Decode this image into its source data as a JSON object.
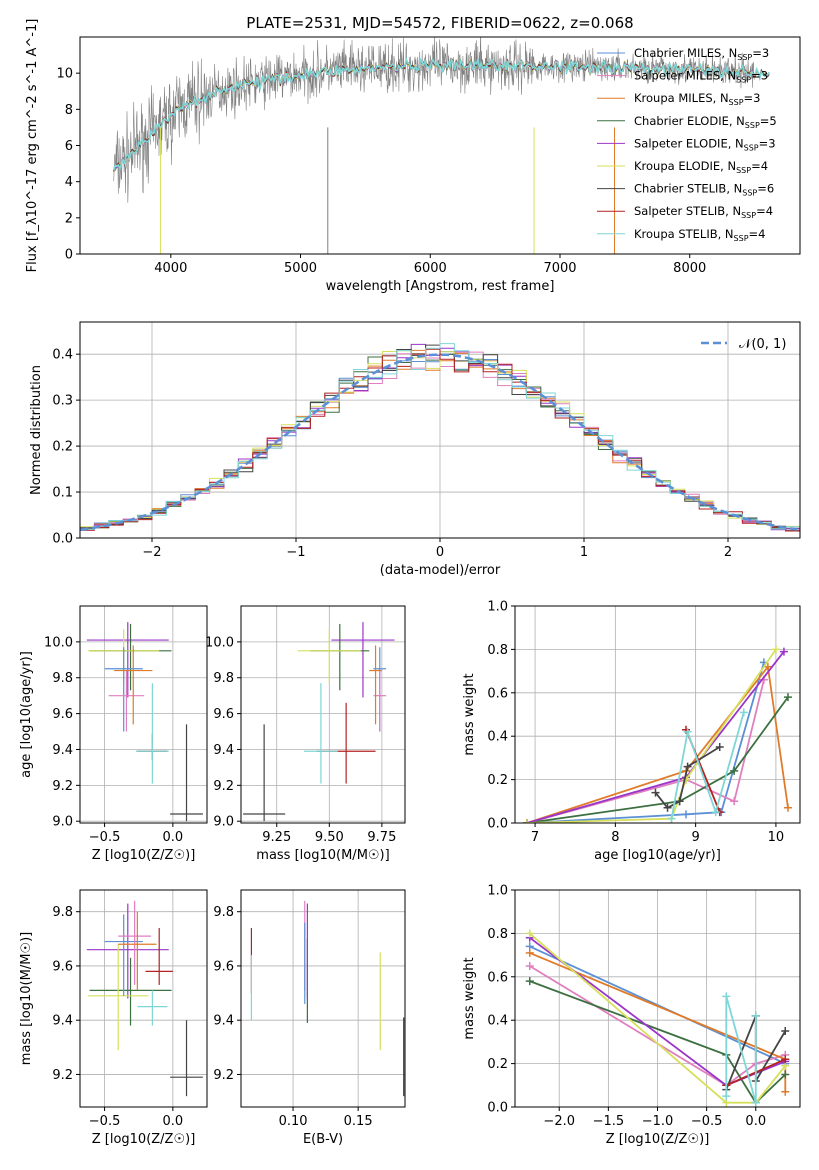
{
  "title": "PLATE=2531, MJD=54572, FIBERID=0622, z=0.068",
  "colors": {
    "chabrier_miles": "#5b8fd6",
    "salpeter_miles": "#e07fbf",
    "kroupa_miles": "#e07b2a",
    "chabrier_elodie": "#3c7040",
    "salpeter_elodie": "#9b35c9",
    "kroupa_elodie": "#d6e05a",
    "chabrier_stelib": "#444444",
    "salpeter_stelib": "#b22222",
    "kroupa_stelib": "#7fd6d6",
    "grid": "#b0b0b0",
    "normal_curve": "#5b8fd6"
  },
  "chart_data": [
    {
      "type": "line",
      "panel": "spectrum",
      "xlabel": "wavelength [Angstrom, rest frame]",
      "ylabel": "Flux [f_λ10^-17 erg cm^-2 s^-1 A^-1]",
      "xlim": [
        3300,
        8850
      ],
      "ylim": [
        0,
        12
      ],
      "xticks": [
        "4000",
        "5000",
        "6000",
        "7000",
        "8000"
      ],
      "yticks": [
        "0",
        "2",
        "4",
        "6",
        "8",
        "10"
      ],
      "legend_position": "right",
      "legend": [
        {
          "name": "Chabrier MILES, N_SSP=3",
          "key": "chabrier_miles"
        },
        {
          "name": "Salpeter MILES, N_SSP=3",
          "key": "salpeter_miles"
        },
        {
          "name": "Kroupa MILES, N_SSP=3",
          "key": "kroupa_miles"
        },
        {
          "name": "Chabrier ELODIE, N_SSP=5",
          "key": "chabrier_elodie"
        },
        {
          "name": "Salpeter ELODIE, N_SSP=3",
          "key": "salpeter_elodie"
        },
        {
          "name": "Kroupa ELODIE, N_SSP=4",
          "key": "kroupa_elodie"
        },
        {
          "name": "Chabrier STELIB, N_SSP=6",
          "key": "chabrier_stelib"
        },
        {
          "name": "Salpeter STELIB, N_SSP=4",
          "key": "salpeter_stelib"
        },
        {
          "name": "Kroupa STELIB, N_SSP=4",
          "key": "kroupa_stelib"
        }
      ],
      "continuum": {
        "x": [
          3550,
          3700,
          3900,
          4100,
          4400,
          4800,
          5200,
          5600,
          6000,
          6500,
          7000,
          7500,
          8000,
          8500
        ],
        "y": [
          4.6,
          5.6,
          7.0,
          8.2,
          9.1,
          9.7,
          10.1,
          10.3,
          10.4,
          10.4,
          10.4,
          10.3,
          10.2,
          10.0
        ]
      }
    },
    {
      "type": "step",
      "panel": "residuals",
      "xlabel": "(data-model)/error",
      "ylabel": "Normed distribution",
      "xlim": [
        -2.5,
        2.5
      ],
      "ylim": [
        0,
        0.47
      ],
      "xticks": [
        "−2",
        "−1",
        "0",
        "1",
        "2"
      ],
      "yticks": [
        "0.0",
        "0.1",
        "0.2",
        "0.3",
        "0.4"
      ],
      "legend": [
        {
          "name": "𝒩(0, 1)"
        }
      ],
      "legend_position": "top-right"
    },
    {
      "type": "scatter",
      "panel": "age_vs_Z",
      "xlabel": "Z [log10(Z/Z☉)]",
      "ylabel": "age  [log10(age/yr)]",
      "xlim": [
        -0.68,
        0.25
      ],
      "ylim": [
        8.99,
        10.2
      ],
      "xticks": [
        "−0.5",
        "0.0"
      ],
      "yticks": [
        "9.0",
        "9.2",
        "9.4",
        "9.6",
        "9.8",
        "10.0"
      ],
      "points": [
        {
          "key": "salpeter_elodie",
          "x": -0.33,
          "y": 10.01,
          "xerr": 0.3,
          "yerr": [
            0.32,
            0.1
          ]
        },
        {
          "key": "chabrier_elodie",
          "x": -0.31,
          "y": 9.95,
          "xerr": 0.3,
          "yerr": [
            0.22,
            0.15
          ]
        },
        {
          "key": "kroupa_elodie",
          "x": -0.36,
          "y": 9.95,
          "xerr": 0.26,
          "yerr": [
            0.18,
            0.12
          ]
        },
        {
          "key": "chabrier_miles",
          "x": -0.36,
          "y": 9.85,
          "xerr": 0.14,
          "yerr": [
            0.35,
            0.12
          ]
        },
        {
          "key": "salpeter_miles",
          "x": -0.34,
          "y": 9.7,
          "xerr": 0.13,
          "yerr": [
            0.2,
            0.14
          ]
        },
        {
          "key": "kroupa_miles",
          "x": -0.29,
          "y": 9.84,
          "xerr": 0.14,
          "yerr": [
            0.3,
            0.14
          ]
        },
        {
          "key": "salpeter_stelib",
          "x": -0.15,
          "y": 9.39,
          "xerr": 0.11,
          "yerr": [
            0.05,
            0.1
          ]
        },
        {
          "key": "kroupa_stelib",
          "x": -0.15,
          "y": 9.39,
          "xerr": 0.12,
          "yerr": [
            0.18,
            0.38
          ]
        },
        {
          "key": "chabrier_stelib",
          "x": 0.1,
          "y": 9.04,
          "xerr": 0.12,
          "yerr": [
            0.04,
            0.5
          ]
        }
      ]
    },
    {
      "type": "scatter",
      "panel": "age_vs_mass",
      "xlabel": "mass [log10(M/M☉)]",
      "ylabel": "",
      "xlim": [
        9.08,
        9.86
      ],
      "ylim": [
        8.99,
        10.2
      ],
      "xticks": [
        "9.25",
        "9.50",
        "9.75"
      ],
      "yticks": [
        "9.0",
        "9.2",
        "9.4",
        "9.6",
        "9.8",
        "10.0"
      ],
      "points": [
        {
          "key": "salpeter_elodie",
          "x": 9.66,
          "y": 10.01,
          "xerr": 0.15,
          "yerr": [
            0.32,
            0.1
          ]
        },
        {
          "key": "chabrier_elodie",
          "x": 9.55,
          "y": 9.95,
          "xerr": 0.14,
          "yerr": [
            0.22,
            0.15
          ]
        },
        {
          "key": "kroupa_elodie",
          "x": 9.5,
          "y": 9.95,
          "xerr": 0.15,
          "yerr": [
            0.18,
            0.12
          ]
        },
        {
          "key": "chabrier_miles",
          "x": 9.74,
          "y": 9.85,
          "xerr": 0.03,
          "yerr": [
            0.35,
            0.12
          ]
        },
        {
          "key": "salpeter_miles",
          "x": 9.74,
          "y": 9.7,
          "xerr": 0.03,
          "yerr": [
            0.2,
            0.14
          ]
        },
        {
          "key": "kroupa_miles",
          "x": 9.72,
          "y": 9.84,
          "xerr": 0.03,
          "yerr": [
            0.3,
            0.14
          ]
        },
        {
          "key": "salpeter_stelib",
          "x": 9.58,
          "y": 9.39,
          "xerr": 0.14,
          "yerr": [
            0.18,
            0.27
          ]
        },
        {
          "key": "kroupa_stelib",
          "x": 9.46,
          "y": 9.39,
          "xerr": 0.08,
          "yerr": [
            0.18,
            0.38
          ]
        },
        {
          "key": "chabrier_stelib",
          "x": 9.19,
          "y": 9.04,
          "xerr": 0.1,
          "yerr": [
            0.04,
            0.5
          ]
        }
      ]
    },
    {
      "type": "line",
      "panel": "weight_vs_age",
      "xlabel": "age  [log10(age/yr)]",
      "ylabel": "mass weight",
      "xlim": [
        6.75,
        10.3
      ],
      "ylim": [
        0,
        1
      ],
      "xticks": [
        "7",
        "8",
        "9",
        "10"
      ],
      "yticks": [
        "0.0",
        "0.2",
        "0.4",
        "0.6",
        "0.8",
        "1.0"
      ],
      "series": [
        {
          "key": "chabrier_miles",
          "x": [
            6.9,
            8.88,
            9.32,
            9.85
          ],
          "y": [
            0.0,
            0.04,
            0.05,
            0.74
          ]
        },
        {
          "key": "salpeter_miles",
          "x": [
            6.9,
            8.88,
            9.48,
            9.85
          ],
          "y": [
            0.0,
            0.2,
            0.1,
            0.66
          ]
        },
        {
          "key": "kroupa_miles",
          "x": [
            6.9,
            8.88,
            9.9,
            10.15
          ],
          "y": [
            0.0,
            0.24,
            0.72,
            0.07
          ]
        },
        {
          "key": "chabrier_elodie",
          "x": [
            6.9,
            8.8,
            9.48,
            10.15
          ],
          "y": [
            0.0,
            0.1,
            0.24,
            0.58
          ]
        },
        {
          "key": "salpeter_elodie",
          "x": [
            6.9,
            8.88,
            10.1
          ],
          "y": [
            0.0,
            0.21,
            0.79
          ]
        },
        {
          "key": "kroupa_elodie",
          "x": [
            6.9,
            8.7,
            8.88,
            10.0
          ],
          "y": [
            0.0,
            0.02,
            0.2,
            0.8
          ]
        },
        {
          "key": "chabrier_stelib",
          "x": [
            8.5,
            8.65,
            8.8,
            8.9,
            9.3
          ],
          "y": [
            0.14,
            0.07,
            0.1,
            0.26,
            0.35
          ]
        },
        {
          "key": "salpeter_stelib",
          "x": [
            8.88,
            9.3
          ],
          "y": [
            0.43,
            0.05
          ]
        },
        {
          "key": "kroupa_stelib",
          "x": [
            8.7,
            8.9,
            9.25,
            9.6
          ],
          "y": [
            0.02,
            0.42,
            0.05,
            0.51
          ]
        }
      ]
    },
    {
      "type": "scatter",
      "panel": "mass_vs_Z",
      "xlabel": "Z [log10(Z/Z☉)]",
      "ylabel": "mass [log10(M/M☉)]",
      "xlim": [
        -0.68,
        0.25
      ],
      "ylim": [
        9.08,
        9.88
      ],
      "xticks": [
        "−0.5",
        "0.0"
      ],
      "yticks": [
        "9.2",
        "9.4",
        "9.6",
        "9.8"
      ],
      "points": [
        {
          "key": "salpeter_elodie",
          "x": -0.33,
          "y": 9.66,
          "xerr": 0.3,
          "yerr": [
            0.18,
            0.17
          ]
        },
        {
          "key": "chabrier_elodie",
          "x": -0.31,
          "y": 9.51,
          "xerr": 0.3,
          "yerr": [
            0.13,
            0.12
          ]
        },
        {
          "key": "kroupa_elodie",
          "x": -0.4,
          "y": 9.49,
          "xerr": 0.22,
          "yerr": [
            0.2,
            0.19
          ]
        },
        {
          "key": "chabrier_miles",
          "x": -0.36,
          "y": 9.69,
          "xerr": 0.14,
          "yerr": [
            0.2,
            0.1
          ]
        },
        {
          "key": "salpeter_miles",
          "x": -0.28,
          "y": 9.71,
          "xerr": 0.12,
          "yerr": [
            0.18,
            0.13
          ]
        },
        {
          "key": "kroupa_miles",
          "x": -0.26,
          "y": 9.68,
          "xerr": 0.14,
          "yerr": [
            0.17,
            0.12
          ]
        },
        {
          "key": "salpeter_stelib",
          "x": -0.1,
          "y": 9.58,
          "xerr": 0.1,
          "yerr": [
            0.05,
            0.16
          ]
        },
        {
          "key": "kroupa_stelib",
          "x": -0.15,
          "y": 9.45,
          "xerr": 0.11,
          "yerr": [
            0.07,
            0.06
          ]
        },
        {
          "key": "chabrier_stelib",
          "x": 0.1,
          "y": 9.19,
          "xerr": 0.12,
          "yerr": [
            0.07,
            0.21
          ]
        }
      ]
    },
    {
      "type": "scatter",
      "panel": "mass_vs_ebv",
      "xlabel": "E(B-V)",
      "ylabel": "",
      "xlim": [
        0.06,
        0.186
      ],
      "ylim": [
        9.08,
        9.88
      ],
      "xticks": [
        "0.10",
        "0.15"
      ],
      "yticks": [
        "9.2",
        "9.4",
        "9.6",
        "9.8"
      ],
      "points": [
        {
          "key": "salpeter_stelib",
          "x": 0.068,
          "y": 9.62,
          "yerr": [
            0.12,
            0.12
          ]
        },
        {
          "key": "kroupa_stelib",
          "x": 0.068,
          "y": 9.5,
          "yerr": [
            0.1,
            0.14
          ]
        },
        {
          "key": "salpeter_miles",
          "x": 0.109,
          "y": 9.71,
          "yerr": [
            0.2,
            0.13
          ]
        },
        {
          "key": "chabrier_miles",
          "x": 0.109,
          "y": 9.66,
          "yerr": [
            0.2,
            0.1
          ]
        },
        {
          "key": "chabrier_elodie",
          "x": 0.111,
          "y": 9.6,
          "yerr": [
            0.21,
            0.1
          ]
        },
        {
          "key": "salpeter_elodie",
          "x": 0.111,
          "y": 9.66,
          "yerr": [
            0.18,
            0.17
          ]
        },
        {
          "key": "kroupa_elodie",
          "x": 0.167,
          "y": 9.47,
          "yerr": [
            0.18,
            0.18
          ]
        },
        {
          "key": "chabrier_stelib",
          "x": 0.185,
          "y": 9.26,
          "yerr": [
            0.14,
            0.15
          ]
        }
      ]
    },
    {
      "type": "line",
      "panel": "weight_vs_Z",
      "xlabel": "Z [log10(Z/Z☉)]",
      "ylabel": "mass weight",
      "xlim": [
        -2.45,
        0.45
      ],
      "ylim": [
        0,
        1
      ],
      "xticks": [
        "−2.0",
        "−1.5",
        "−1.0",
        "−0.5",
        "0.0"
      ],
      "yticks": [
        "0.0",
        "0.2",
        "0.4",
        "0.6",
        "0.8",
        "1.0"
      ],
      "series": [
        {
          "key": "chabrier_miles",
          "x": [
            -2.3,
            0.3
          ],
          "y": [
            0.74,
            0.2
          ]
        },
        {
          "key": "salpeter_miles",
          "x": [
            -2.3,
            -0.3,
            0.0,
            0.3
          ],
          "y": [
            0.65,
            0.1,
            0.2,
            0.24
          ]
        },
        {
          "key": "kroupa_miles",
          "x": [
            -2.3,
            0.3,
            0.3
          ],
          "y": [
            0.71,
            0.22,
            0.07
          ]
        },
        {
          "key": "chabrier_elodie",
          "x": [
            -2.3,
            -0.3,
            0.0,
            0.3
          ],
          "y": [
            0.58,
            0.24,
            0.02,
            0.15
          ]
        },
        {
          "key": "salpeter_elodie",
          "x": [
            -2.3,
            -0.3,
            0.3
          ],
          "y": [
            0.78,
            0.1,
            0.21
          ]
        },
        {
          "key": "kroupa_elodie",
          "x": [
            -2.3,
            -0.3,
            0.0,
            0.3
          ],
          "y": [
            0.8,
            0.02,
            0.02,
            0.19
          ]
        },
        {
          "key": "chabrier_stelib",
          "x": [
            -0.3,
            0.0,
            0.0,
            0.3
          ],
          "y": [
            0.08,
            0.42,
            0.12,
            0.35
          ]
        },
        {
          "key": "salpeter_stelib",
          "x": [
            -0.3,
            0.3
          ],
          "y": [
            0.1,
            0.22
          ]
        },
        {
          "key": "kroupa_stelib",
          "x": [
            -0.3,
            -0.3,
            0.0,
            0.0
          ],
          "y": [
            0.05,
            0.51,
            0.02,
            0.42
          ]
        }
      ]
    }
  ]
}
